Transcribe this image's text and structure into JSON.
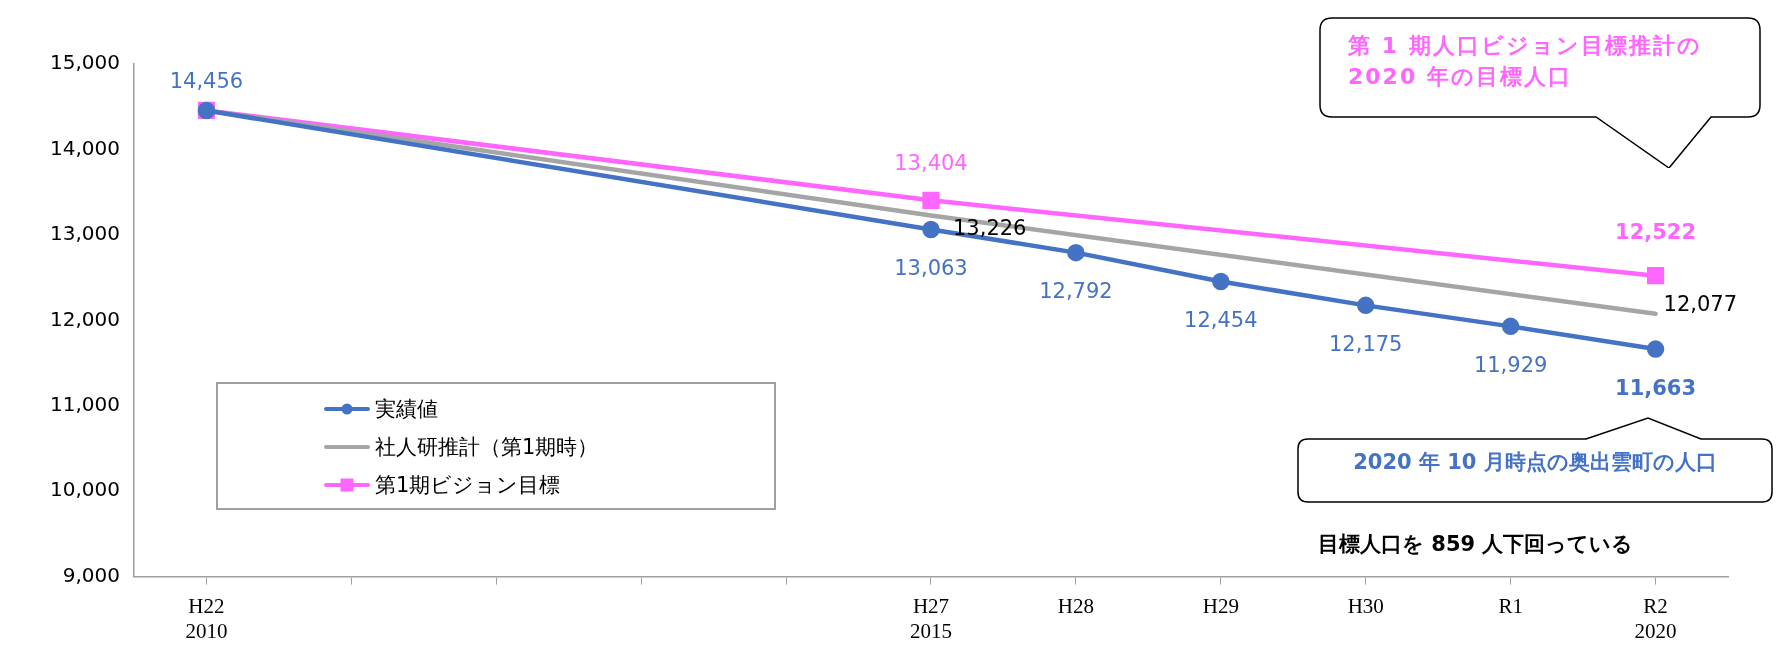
{
  "chart_data": {
    "type": "line",
    "categories": [
      "H22\n2010",
      null,
      null,
      null,
      null,
      "H27\n2015",
      "H28",
      "H29",
      "H30",
      "R1",
      "R2\n2020"
    ],
    "series": [
      {
        "name": "実績値",
        "color": "#4472c4",
        "marker": "circle",
        "values": [
          14456,
          null,
          null,
          null,
          null,
          13063,
          12792,
          12454,
          12175,
          11929,
          11663
        ],
        "value_labels": [
          "14,456",
          null,
          null,
          null,
          null,
          "13,063",
          "12,792",
          "12,454",
          "12,175",
          "11,929",
          "11,663"
        ]
      },
      {
        "name": "社人研推計（第1期時）",
        "color": "#a5a5a5",
        "marker": "none",
        "values": [
          14456,
          null,
          null,
          null,
          null,
          13226,
          null,
          null,
          null,
          null,
          12077
        ],
        "value_labels": [
          null,
          null,
          null,
          null,
          null,
          "13,226",
          null,
          null,
          null,
          null,
          "12,077"
        ]
      },
      {
        "name": "第1期ビジョン目標",
        "color": "#ff66ff",
        "marker": "square",
        "values": [
          14456,
          null,
          null,
          null,
          null,
          13404,
          null,
          null,
          null,
          null,
          12522
        ],
        "value_labels": [
          null,
          null,
          null,
          null,
          null,
          "13,404",
          null,
          null,
          null,
          null,
          "12,522"
        ]
      }
    ],
    "ylim": [
      9000,
      15000
    ],
    "yticks": [
      {
        "value": 9000,
        "label": "9,000"
      },
      {
        "value": 10000,
        "label": "10,000"
      },
      {
        "value": 11000,
        "label": "11,000"
      },
      {
        "value": 12000,
        "label": "12,000"
      },
      {
        "value": 13000,
        "label": "13,000"
      },
      {
        "value": 14000,
        "label": "14,000"
      },
      {
        "value": 15000,
        "label": "15,000"
      }
    ],
    "grid": false,
    "legend": "bottom left",
    "annotations": [
      "第 1 期人口ビジョン目標推計の\n2020 年の目標人口",
      "2020 年 10 月時点の奥出雲町の人口",
      "目標人口を 859 人下回っている"
    ]
  }
}
